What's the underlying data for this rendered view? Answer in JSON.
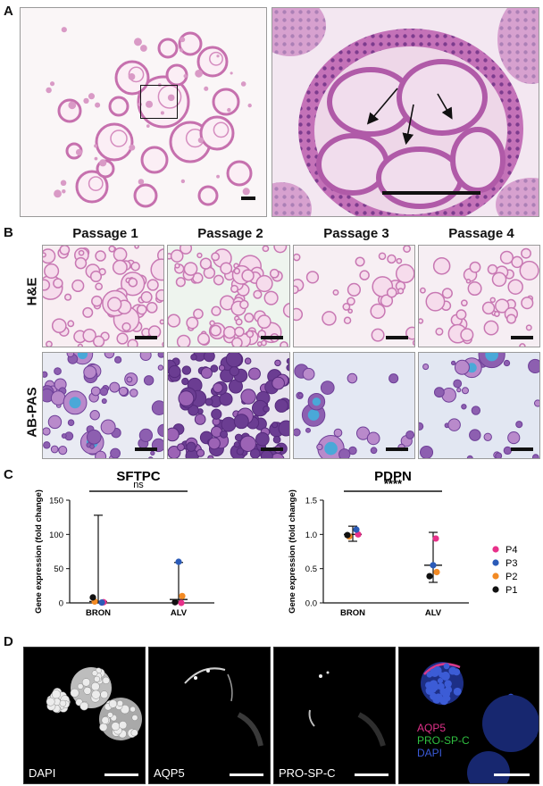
{
  "panels": {
    "a": {
      "letter": "A"
    },
    "b": {
      "letter": "B",
      "columns": [
        "Passage 1",
        "Passage 2",
        "Passage 3",
        "Passage 4"
      ],
      "rows": [
        "H&E",
        "AB-PAS"
      ]
    },
    "c": {
      "letter": "C"
    },
    "d": {
      "letter": "D",
      "labels": [
        "DAPI",
        "AQP5",
        "PRO-SP-C"
      ],
      "merge_labels": [
        {
          "text": "AQP5",
          "color": "#e0308a"
        },
        {
          "text": "PRO-SP-C",
          "color": "#2fbf40"
        },
        {
          "text": "DAPI",
          "color": "#3a5ad8"
        }
      ]
    }
  },
  "chart_data": [
    {
      "type": "scatter",
      "title": "SFTPC",
      "ylabel": "Gene expression (fold change)",
      "categories": [
        "BRON",
        "ALV"
      ],
      "ylim": [
        0,
        150
      ],
      "yticks": [
        0,
        50,
        100,
        150
      ],
      "significance": "ns",
      "series": [
        {
          "name": "P4",
          "color": "#e8318a",
          "values": [
            1,
            0
          ]
        },
        {
          "name": "P3",
          "color": "#2b5bb8",
          "values": [
            0.5,
            60
          ]
        },
        {
          "name": "P2",
          "color": "#f28a24",
          "values": [
            2,
            10
          ]
        },
        {
          "name": "P1",
          "color": "#111111",
          "values": [
            8,
            1
          ]
        }
      ],
      "summary": {
        "median": [
          2,
          5
        ],
        "upper": [
          128,
          59
        ],
        "lower": [
          0,
          0
        ]
      }
    },
    {
      "type": "scatter",
      "title": "PDPN",
      "ylabel": "Gene expression (fold change)",
      "categories": [
        "BRON",
        "ALV"
      ],
      "ylim": [
        0,
        1.5
      ],
      "yticks": [
        "0.0",
        "0.5",
        "1.0",
        "1.5"
      ],
      "significance": "****",
      "series": [
        {
          "name": "P4",
          "color": "#e8318a",
          "values": [
            1.0,
            0.94
          ]
        },
        {
          "name": "P3",
          "color": "#2b5bb8",
          "values": [
            1.07,
            0.55
          ]
        },
        {
          "name": "P2",
          "color": "#f28a24",
          "values": [
            0.97,
            0.45
          ]
        },
        {
          "name": "P1",
          "color": "#111111",
          "values": [
            0.99,
            0.39
          ]
        }
      ],
      "summary": {
        "median": [
          1.0,
          0.55
        ],
        "upper": [
          1.12,
          1.03
        ],
        "lower": [
          0.9,
          0.3
        ]
      }
    }
  ],
  "legend": [
    {
      "name": "P4",
      "color": "#e8318a"
    },
    {
      "name": "P3",
      "color": "#2b5bb8"
    },
    {
      "name": "P2",
      "color": "#f28a24"
    },
    {
      "name": "P1",
      "color": "#111111"
    }
  ]
}
